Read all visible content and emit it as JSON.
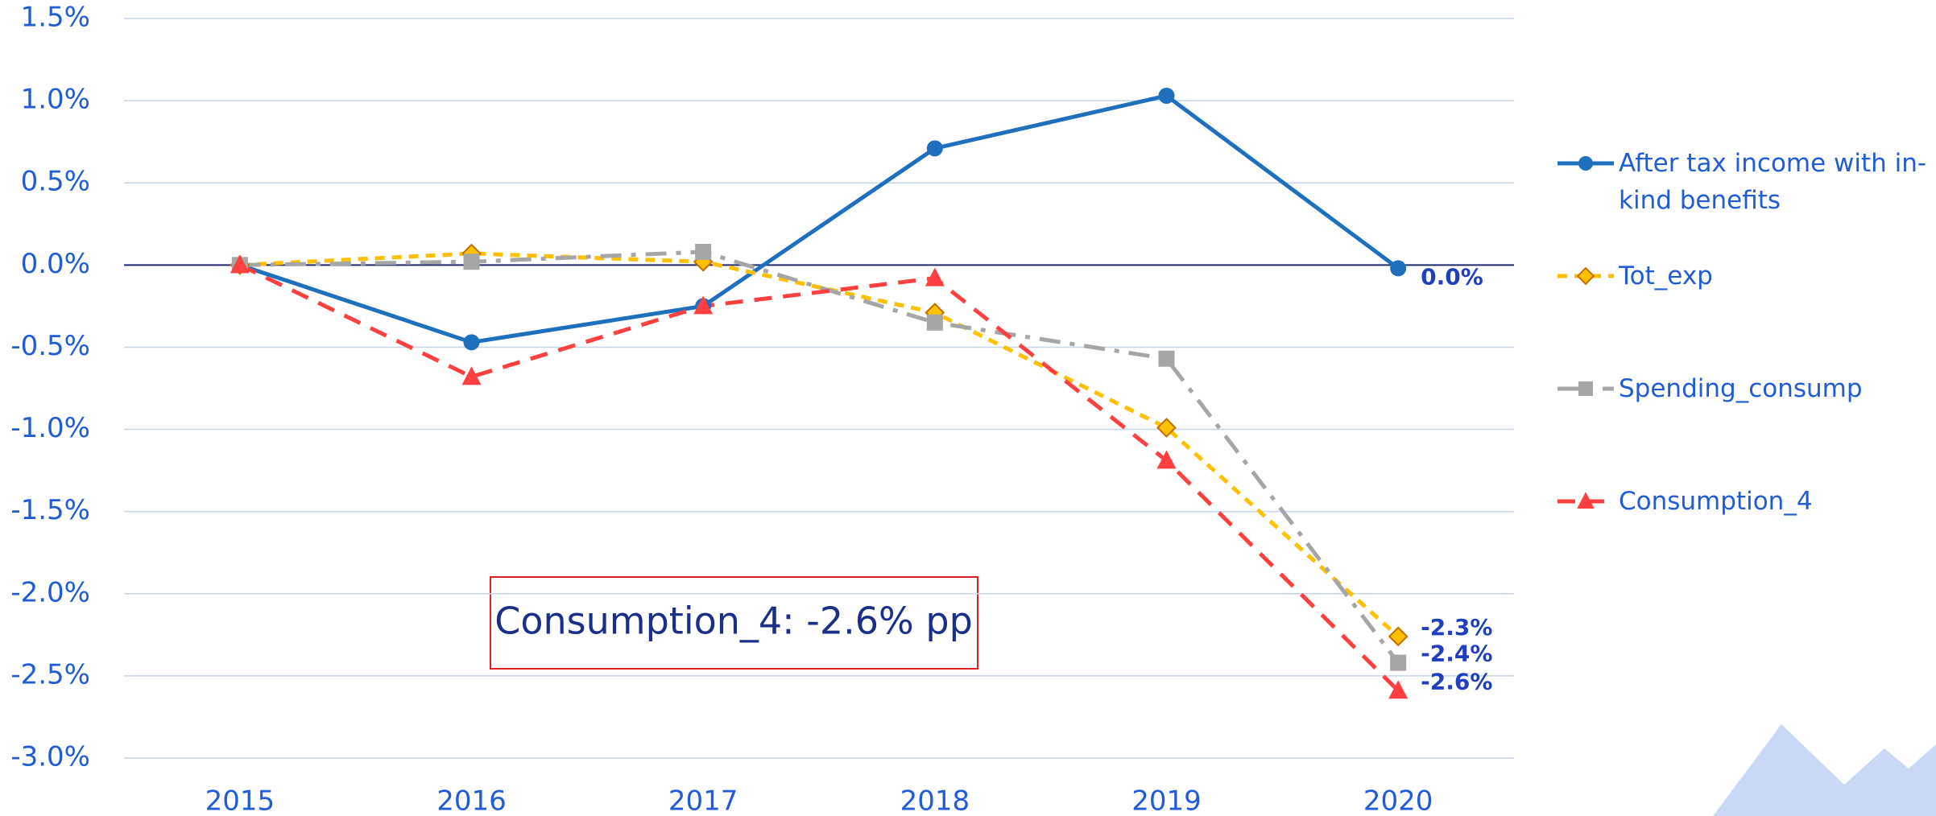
{
  "chart_data": {
    "type": "line",
    "categories": [
      "2015",
      "2016",
      "2017",
      "2018",
      "2019",
      "2020"
    ],
    "series": [
      {
        "name": "After tax income with in-kind benefits",
        "color": "#1f6fbf",
        "marker": "circle",
        "dash": "solid",
        "values": [
          0,
          -0.47,
          -0.25,
          0.71,
          1.03,
          -0.02
        ],
        "value_labels": [
          null,
          null,
          null,
          null,
          null,
          "0.0%"
        ]
      },
      {
        "name": "Tot_exp",
        "color": "#ffc000",
        "marker": "diamond",
        "dash": "dash",
        "values": [
          0,
          0.07,
          0.02,
          -0.29,
          -0.99,
          -2.26
        ],
        "value_labels": [
          null,
          null,
          null,
          null,
          null,
          "-2.3%"
        ]
      },
      {
        "name": "Spending_consump",
        "color": "#a6a6a6",
        "marker": "square",
        "dash": "dashdot",
        "values": [
          0,
          0.02,
          0.08,
          -0.35,
          -0.57,
          -2.42
        ],
        "value_labels": [
          null,
          null,
          null,
          null,
          null,
          "-2.4%"
        ]
      },
      {
        "name": "Consumption_4",
        "color": "#ff4040",
        "marker": "triangle",
        "dash": "longdash",
        "values": [
          0,
          -0.68,
          -0.25,
          -0.08,
          -1.19,
          -2.59
        ],
        "value_labels": [
          null,
          null,
          null,
          null,
          null,
          "-2.6%"
        ]
      }
    ],
    "ylim": [
      -3.0,
      1.5
    ],
    "yticks": [
      {
        "value": -3.0,
        "label": "-3.0%"
      },
      {
        "value": -2.5,
        "label": "-2.5%"
      },
      {
        "value": -2.0,
        "label": "-2.0%"
      },
      {
        "value": -1.5,
        "label": "-1.5%"
      },
      {
        "value": -1.0,
        "label": "-1.0%"
      },
      {
        "value": -0.5,
        "label": "-0.5%"
      },
      {
        "value": 0.0,
        "label": "0.0%"
      },
      {
        "value": 0.5,
        "label": "0.5%"
      },
      {
        "value": 1.0,
        "label": "1.0%"
      },
      {
        "value": 1.5,
        "label": "1.5%"
      }
    ],
    "grid": true,
    "legend": "right",
    "annotation": "Consumption_4: -2.6% pp"
  }
}
